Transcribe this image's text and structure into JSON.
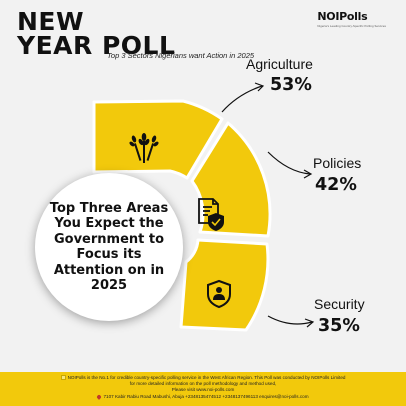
{
  "header": {
    "title_line1": "NEW",
    "title_line2": "YEAR POLL",
    "subtitle": "Top 3 Sectors Nigerians want Action in 2025"
  },
  "brand": {
    "name_prefix": "NOI",
    "name_suffix": "Polls",
    "tagline": "Nigeria's Leading Country-Specific Polling Services"
  },
  "center_question": "Top Three Areas You Expect the Government to Focus its Attention on in 2025",
  "sectors": [
    {
      "label": "Agriculture",
      "value": "53%",
      "icon": "wheat-icon"
    },
    {
      "label": "Policies",
      "value": "42%",
      "icon": "policy-document-icon"
    },
    {
      "label": "Security",
      "value": "35%",
      "icon": "security-shield-icon"
    }
  ],
  "colors": {
    "background": "#f2f2f2",
    "accent_yellow": "#f2c90c",
    "dark": "#111111"
  },
  "footer": {
    "line1": "NOIPolls is the No.1 for credible country-specific polling service in the West African Region. This Poll was conducted by NOIPolls Limited",
    "line2": "for more detailed information on the poll methodology and method used,",
    "line3": "Please visit www.noi-polls.com",
    "contact": "7107 Kabir Rabiu Road Mabushi, Abuja +2348135474512 +2348137496113 enquires@noi-polls.com"
  }
}
